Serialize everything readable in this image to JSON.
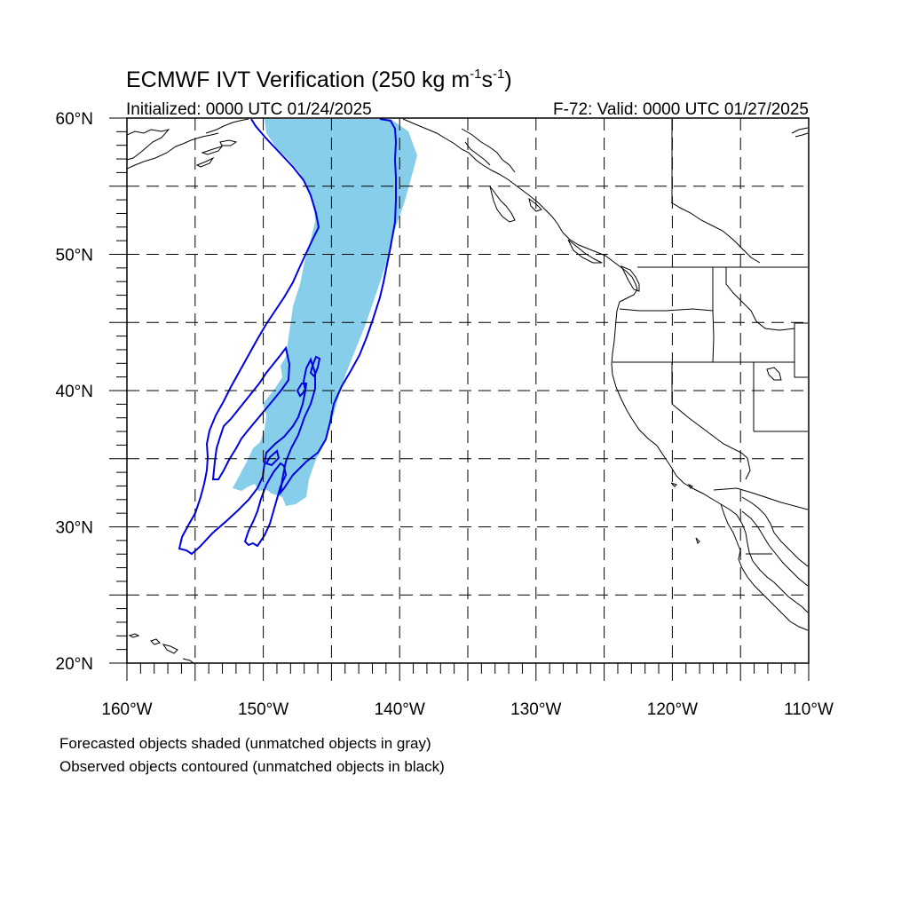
{
  "title": {
    "main": "ECMWF IVT Verification (250 kg m",
    "sup1": "-1",
    "mid": "s",
    "sup2": "-1",
    "end": ")"
  },
  "initialized": "Initialized: 0000 UTC 01/24/2025",
  "valid": "F-72: Valid: 0000 UTC 01/27/2025",
  "lat_labels": [
    {
      "label": "60°N",
      "lat": 60
    },
    {
      "label": "50°N",
      "lat": 50
    },
    {
      "label": "40°N",
      "lat": 40
    },
    {
      "label": "30°N",
      "lat": 30
    },
    {
      "label": "20°N",
      "lat": 20
    }
  ],
  "lon_labels": [
    {
      "label": "160°W",
      "lon": -160
    },
    {
      "label": "150°W",
      "lon": -150
    },
    {
      "label": "140°W",
      "lon": -140
    },
    {
      "label": "130°W",
      "lon": -130
    },
    {
      "label": "120°W",
      "lon": -120
    },
    {
      "label": "110°W",
      "lon": -110
    }
  ],
  "extent": {
    "lon_min": -160,
    "lon_max": -110,
    "lat_min": 20,
    "lat_max": 60
  },
  "colors": {
    "forecast_fill": "#87ceeb",
    "observed_contour": "#0000e0",
    "coast": "#000000",
    "grid": "#000000"
  },
  "footnote": {
    "line1": "Forecasted objects shaded (unmatched objects in gray)",
    "line2": "Observed objects contoured (unmatched objects in black)"
  }
}
